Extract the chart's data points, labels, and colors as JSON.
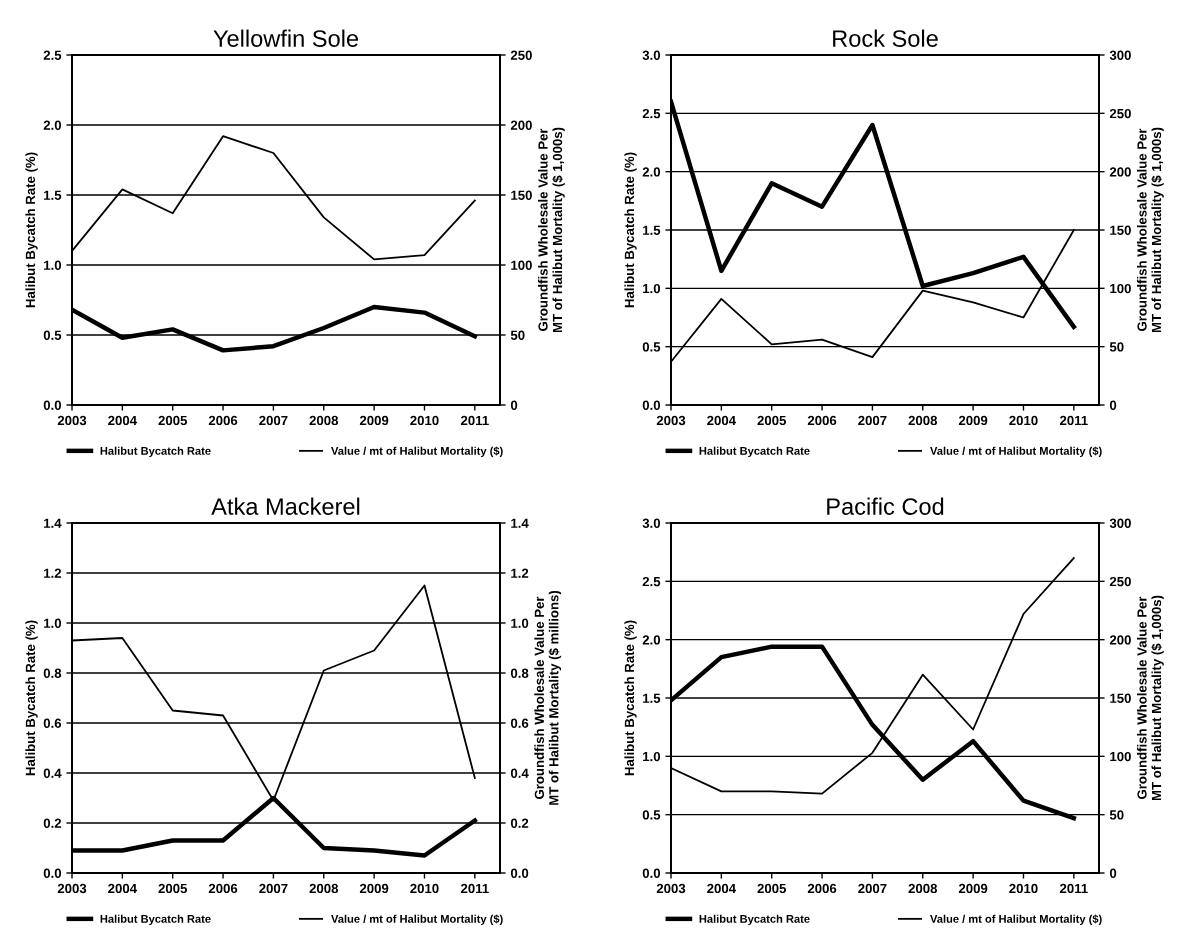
{
  "chart_data": [
    {
      "type": "line",
      "title": "Yellowfin Sole",
      "ylabel": "Halibut Bycatch Rate (%)",
      "y2label": "Groundfish Wholesale Value Per\nMT of Halibut Mortality ($ 1,000s)",
      "categories": [
        "2003",
        "2004",
        "2005",
        "2006",
        "2007",
        "2008",
        "2009",
        "2010",
        "2011"
      ],
      "series": [
        {
          "name": "Halibut Bycatch Rate",
          "color": "#000000",
          "values": [
            0.68,
            0.48,
            0.54,
            0.39,
            0.42,
            0.55,
            0.7,
            0.66,
            0.49
          ]
        },
        {
          "name": "Value / mt of Halibut Mortality ($)",
          "color": "#000000",
          "axis": "y2",
          "values": [
            110,
            154,
            137,
            192,
            180,
            134,
            104,
            107,
            146
          ]
        }
      ],
      "ylim": [
        0.0,
        2.5
      ],
      "yticks": [
        {
          "value": 0,
          "label": "0.0"
        },
        0.5,
        {
          "value": 1,
          "label": "1.0"
        },
        1.5,
        {
          "value": 2,
          "label": "2.0"
        },
        2.5
      ],
      "y2lim": [
        0,
        250
      ],
      "y2ticks": [
        0,
        50,
        100,
        150,
        200,
        250
      ],
      "grid": "y",
      "legend": "bottom",
      "marker": "none",
      "line_style": "solid"
    },
    {
      "type": "line",
      "title": "Rock Sole",
      "ylabel": "Halibut Bycatch Rate (%)",
      "y2label": "Groundfish Wholesale Value Per\nMT of Halibut Mortality ($ 1,000s)",
      "categories": [
        "2003",
        "2004",
        "2005",
        "2006",
        "2007",
        "2008",
        "2009",
        "2010",
        "2011"
      ],
      "series": [
        {
          "name": "Halibut Bycatch Rate",
          "color": "#000000",
          "values": [
            2.6,
            1.15,
            1.9,
            1.7,
            2.4,
            1.02,
            1.13,
            1.27,
            0.67
          ]
        },
        {
          "name": "Value / mt of Halibut Mortality ($)",
          "color": "#000000",
          "axis": "y2",
          "values": [
            37,
            91,
            52,
            56,
            41,
            98,
            88,
            75,
            150
          ]
        }
      ],
      "ylim": [
        0.0,
        3.0
      ],
      "yticks": [
        {
          "value": 0,
          "label": "0.0"
        },
        0.5,
        {
          "value": 1,
          "label": "1.0"
        },
        1.5,
        {
          "value": 2,
          "label": "2.0"
        },
        2.5,
        {
          "value": 3,
          "label": "3.0"
        }
      ],
      "y2lim": [
        0,
        300
      ],
      "y2ticks": [
        0,
        50,
        100,
        150,
        200,
        250,
        300
      ],
      "grid": "y",
      "legend": "bottom",
      "marker": "none",
      "line_style": "solid"
    },
    {
      "type": "line",
      "title": "Atka Mackerel",
      "ylabel": "Halibut Bycatch Rate (%)",
      "y2label": "Groundfish Wholesale Value Per\nMT of Halibut Mortality ($ millions)",
      "categories": [
        "2003",
        "2004",
        "2005",
        "2006",
        "2007",
        "2008",
        "2009",
        "2010",
        "2011"
      ],
      "series": [
        {
          "name": "Halibut Bycatch Rate",
          "color": "#000000",
          "values": [
            0.09,
            0.09,
            0.13,
            0.13,
            0.3,
            0.1,
            0.09,
            0.07,
            0.21
          ]
        },
        {
          "name": "Value / mt of Halibut Mortality ($)",
          "color": "#000000",
          "axis": "y2",
          "values": [
            0.93,
            0.94,
            0.65,
            0.63,
            0.29,
            0.81,
            0.89,
            1.15,
            0.38
          ]
        }
      ],
      "ylim": [
        0.0,
        1.4
      ],
      "yticks": [
        {
          "value": 0,
          "label": "0.0"
        },
        0.2,
        0.4,
        0.6,
        0.8,
        {
          "value": 1,
          "label": "1.0"
        },
        1.2,
        1.4
      ],
      "y2lim": [
        0.0,
        1.4
      ],
      "y2ticks": [
        {
          "value": 0,
          "label": "0.0"
        },
        0.2,
        0.4,
        0.6,
        0.8,
        {
          "value": 1,
          "label": "1.0"
        },
        1.2,
        1.4
      ],
      "grid": "y",
      "legend": "bottom",
      "marker": "none",
      "line_style": "solid"
    },
    {
      "type": "line",
      "title": "Pacific Cod",
      "ylabel": "Halibut Bycatch Rate (%)",
      "y2label": "Groundfish Wholesale Value Per\nMT of Halibut Mortality ($ 1,000s)",
      "categories": [
        "2003",
        "2004",
        "2005",
        "2006",
        "2007",
        "2008",
        "2009",
        "2010",
        "2011"
      ],
      "series": [
        {
          "name": "Halibut Bycatch Rate",
          "color": "#000000",
          "values": [
            1.48,
            1.85,
            1.94,
            1.94,
            1.27,
            0.8,
            1.13,
            0.62,
            0.47
          ]
        },
        {
          "name": "Value / mt of Halibut Mortality ($)",
          "color": "#000000",
          "axis": "y2",
          "values": [
            90,
            70,
            70,
            68,
            103,
            170,
            123,
            222,
            270
          ]
        }
      ],
      "ylim": [
        0.0,
        3.0
      ],
      "yticks": [
        {
          "value": 0,
          "label": "0.0"
        },
        0.5,
        {
          "value": 1,
          "label": "1.0"
        },
        1.5,
        {
          "value": 2,
          "label": "2.0"
        },
        2.5,
        {
          "value": 3,
          "label": "3.0"
        }
      ],
      "y2lim": [
        0,
        300
      ],
      "y2ticks": [
        0,
        50,
        100,
        150,
        200,
        250,
        300
      ],
      "grid": "y",
      "legend": "bottom",
      "marker": "none",
      "line_style": "solid"
    }
  ]
}
